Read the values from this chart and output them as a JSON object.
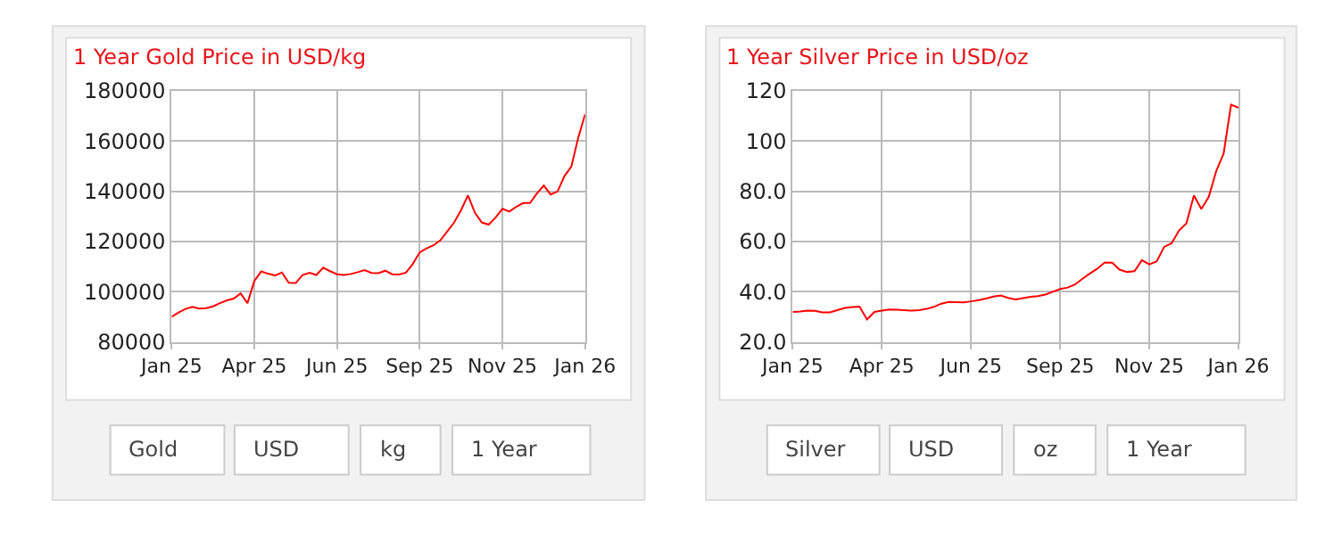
{
  "chart_data": [
    {
      "type": "line",
      "title": "1 Year Gold Price in USD/kg",
      "categories": [
        "Jan 25",
        null,
        null,
        null,
        null,
        null,
        null,
        null,
        null,
        null,
        null,
        null,
        "Apr 25",
        null,
        null,
        null,
        null,
        null,
        null,
        null,
        null,
        null,
        null,
        null,
        "Jun 25",
        null,
        null,
        null,
        null,
        null,
        null,
        null,
        null,
        null,
        null,
        null,
        "Sep 25",
        null,
        null,
        null,
        null,
        null,
        null,
        null,
        null,
        null,
        null,
        null,
        "Nov 25",
        null,
        null,
        null,
        null,
        null,
        null,
        null,
        null,
        null,
        null,
        null,
        "Jan 26"
      ],
      "series": [
        {
          "color": "#ff0000",
          "values": [
            90100,
            91800,
            93200,
            94000,
            93300,
            93500,
            94200,
            95500,
            96600,
            97300,
            99400,
            95500,
            104300,
            108100,
            107200,
            106500,
            107700,
            103600,
            103500,
            106700,
            107600,
            106700,
            109600,
            108200,
            107000,
            106700,
            107100,
            107800,
            108600,
            107500,
            107400,
            108400,
            107000,
            106900,
            107600,
            111100,
            115700,
            117300,
            118500,
            120500,
            124000,
            127600,
            132500,
            138400,
            131500,
            127600,
            126700,
            129500,
            133000,
            131900,
            133800,
            135300,
            135300,
            139100,
            142300,
            138700,
            139900,
            146000,
            149800,
            161300,
            170600
          ]
        }
      ],
      "ylim": [
        80000,
        180000
      ],
      "yticks": [
        80000,
        100000,
        120000,
        140000,
        160000,
        180000
      ],
      "grid": true,
      "marker": "none",
      "line_style": "solid",
      "annotations": [
        "Gold",
        "USD",
        "kg",
        "1 Year"
      ]
    },
    {
      "type": "line",
      "title": "1 Year Silver Price in USD/oz",
      "categories": [
        "Jan 25",
        null,
        null,
        null,
        null,
        null,
        null,
        null,
        null,
        null,
        null,
        null,
        "Apr 25",
        null,
        null,
        null,
        null,
        null,
        null,
        null,
        null,
        null,
        null,
        null,
        "Jun 25",
        null,
        null,
        null,
        null,
        null,
        null,
        null,
        null,
        null,
        null,
        null,
        "Sep 25",
        null,
        null,
        null,
        null,
        null,
        null,
        null,
        null,
        null,
        null,
        null,
        "Nov 25",
        null,
        null,
        null,
        null,
        null,
        null,
        null,
        null,
        null,
        null,
        null,
        "Jan 26"
      ],
      "series": [
        {
          "color": "#ff0000",
          "values": [
            32.0,
            32.2,
            32.5,
            32.4,
            31.8,
            31.8,
            32.7,
            33.6,
            33.9,
            34.1,
            29.0,
            32.0,
            32.5,
            33.0,
            32.9,
            32.7,
            32.5,
            32.7,
            33.2,
            34.0,
            35.3,
            36.0,
            35.9,
            35.8,
            36.2,
            36.7,
            37.3,
            38.1,
            38.5,
            37.6,
            37.0,
            37.5,
            38.0,
            38.3,
            38.9,
            40.0,
            41.1,
            41.7,
            42.9,
            45.2,
            47.3,
            49.2,
            51.7,
            51.6,
            48.8,
            47.9,
            48.2,
            52.6,
            50.9,
            52.1,
            57.9,
            59.3,
            64.4,
            67.3,
            78.3,
            72.9,
            77.8,
            88.0,
            95.0,
            114.4,
            113.2
          ]
        }
      ],
      "ylim": [
        20,
        120
      ],
      "yticks": [
        {
          "value": 20,
          "label": "20.0"
        },
        {
          "value": 40,
          "label": "40.0"
        },
        {
          "value": 60,
          "label": "60.0"
        },
        {
          "value": 80,
          "label": "80.0"
        },
        100,
        120
      ],
      "grid": true,
      "marker": "none",
      "line_style": "solid",
      "annotations": [
        "Silver",
        "USD",
        "oz",
        "1 Year"
      ]
    }
  ]
}
